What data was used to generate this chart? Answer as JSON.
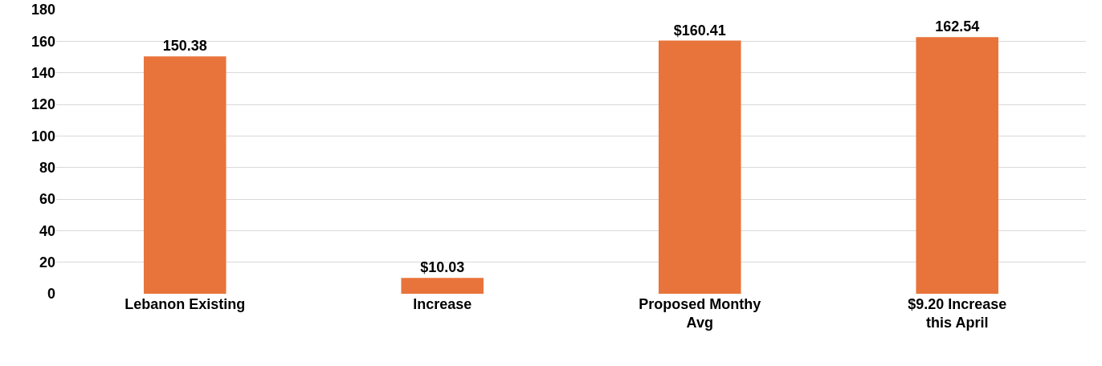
{
  "chart_data": {
    "type": "bar",
    "categories": [
      "Lebanon Existing",
      "Increase",
      "Proposed Monthy Avg",
      "$9.20 Increase this April"
    ],
    "values": [
      150.38,
      10.03,
      160.41,
      162.54
    ],
    "value_labels": [
      "150.38",
      "$10.03",
      "$160.41",
      "162.54"
    ],
    "color": "#e8743b",
    "ylim": [
      0,
      180
    ],
    "yticks": [
      0,
      20,
      40,
      60,
      80,
      100,
      120,
      140,
      160,
      180
    ],
    "grid": "y",
    "legend": false
  }
}
